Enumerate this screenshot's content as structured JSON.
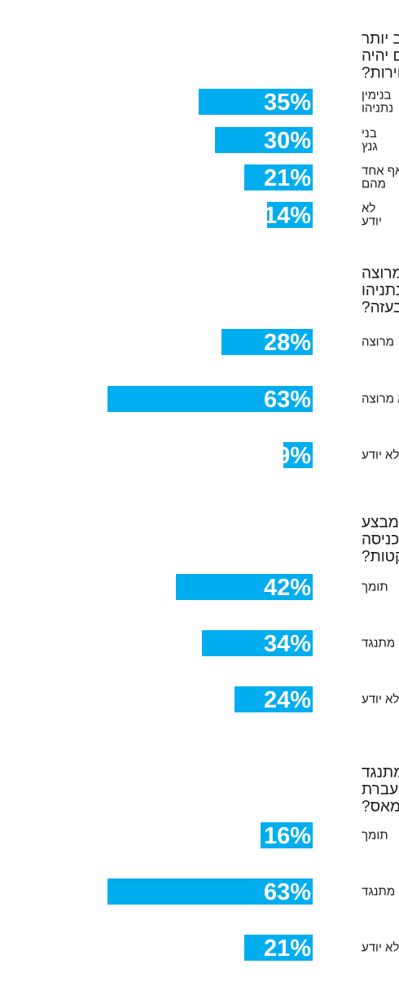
{
  "style": {
    "bar_color": "#00adef",
    "value_text_color": "#ffffff",
    "text_color": "#1a1a1a"
  },
  "chart_data": [
    {
      "type": "bar",
      "orientation": "horizontal",
      "title": [
        "מי לדעתך יוכל לטפל טוב יותר",
        "בעימות מול חמאס בעזה אם יהיה",
        "ראש הממשלה לאחר הבחירות?"
      ],
      "categories": [
        [
          "בנימין",
          "נתניהו"
        ],
        [
          "בני",
          "גנץ"
        ],
        [
          "אף אחד",
          "מהם"
        ],
        [
          "לא",
          "יודע"
        ]
      ],
      "values": [
        35,
        30,
        21,
        14
      ],
      "value_labels": [
        "35%",
        "30%",
        "21%",
        "14%"
      ],
      "unit": "%"
    },
    {
      "type": "bar",
      "orientation": "horizontal",
      "title": [
        "האם אתה מרוצה או לא מרוצה",
        "מהטיפול של ראש הממשלה נתניהו",
        "בעימות מול חמאס בעזה?"
      ],
      "categories": [
        [
          "מרוצה"
        ],
        [
          "לא מרוצה"
        ],
        [
          "לא יודע"
        ]
      ],
      "values": [
        28,
        63,
        9
      ],
      "value_labels": [
        "28%",
        "63%",
        "9%"
      ],
      "unit": "%"
    },
    {
      "type": "bar",
      "orientation": "horizontal",
      "title": [
        "האם אתה תומך או מתנגד למבצע",
        "רחב נגד חמאס בעזה, שכולל כניסה",
        "קרקעית לשם חיסול מערך הרקטות?"
      ],
      "categories": [
        [
          "תומך"
        ],
        [
          "מתנגד"
        ],
        [
          "לא יודע"
        ]
      ],
      "values": [
        42,
        34,
        24
      ],
      "value_labels": [
        "42%",
        "34%",
        "24%"
      ],
      "unit": "%"
    },
    {
      "type": "bar",
      "orientation": "horizontal",
      "title": [
        "האם אתה תומך או מתנגד",
        "למתן האישור הישראלי להעברת",
        "הכסף הקטארי לחמאס?"
      ],
      "categories": [
        [
          "תומך"
        ],
        [
          "מתנגד"
        ],
        [
          "לא יודע"
        ]
      ],
      "values": [
        16,
        63,
        21
      ],
      "value_labels": [
        "16%",
        "63%",
        "21%"
      ],
      "unit": "%"
    }
  ]
}
